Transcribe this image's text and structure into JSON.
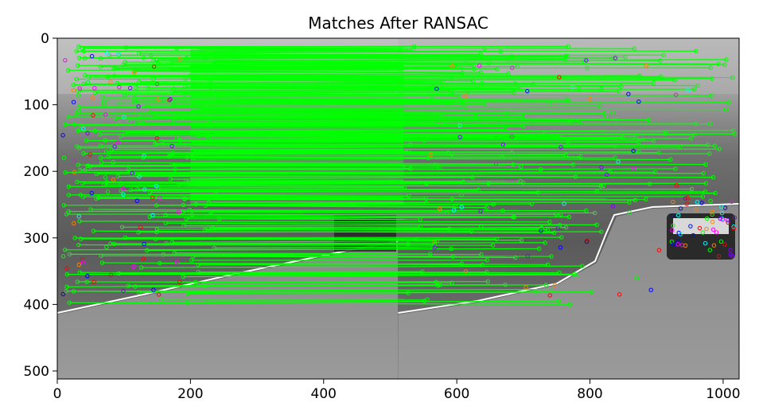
{
  "chart_data": {
    "type": "scatter",
    "title": "Matches After RANSAC",
    "xlabel": "",
    "ylabel": "",
    "xlim": [
      0,
      1024
    ],
    "ylim": [
      512,
      0
    ],
    "x_ticks": [
      0,
      200,
      400,
      600,
      800,
      1000
    ],
    "y_ticks": [
      0,
      100,
      200,
      300,
      400,
      500
    ],
    "grid": false,
    "legend": "none",
    "background_image": "two side-by-side grayscale road images (left and right halves, split at x=512) with a car near the right edge",
    "match_line_color": "#00ff00",
    "keypoint_colors": [
      "#00ff00",
      "#ff0000",
      "#0000ff",
      "#8000ff",
      "#ff8000",
      "#00ffff",
      "#ff00ff"
    ],
    "match_lines_y": [
      15,
      20,
      25,
      28,
      32,
      38,
      42,
      47,
      52,
      58,
      63,
      68,
      72,
      78,
      85,
      90,
      96,
      102,
      108,
      115,
      120,
      126,
      132,
      138,
      145,
      150,
      155,
      160,
      166,
      172,
      178,
      184,
      190,
      196,
      202,
      208,
      214,
      220,
      226,
      232,
      238,
      245,
      252,
      258,
      265,
      272,
      280,
      288,
      296,
      305,
      312,
      320,
      330,
      340,
      350,
      362,
      372,
      382,
      395
    ]
  }
}
